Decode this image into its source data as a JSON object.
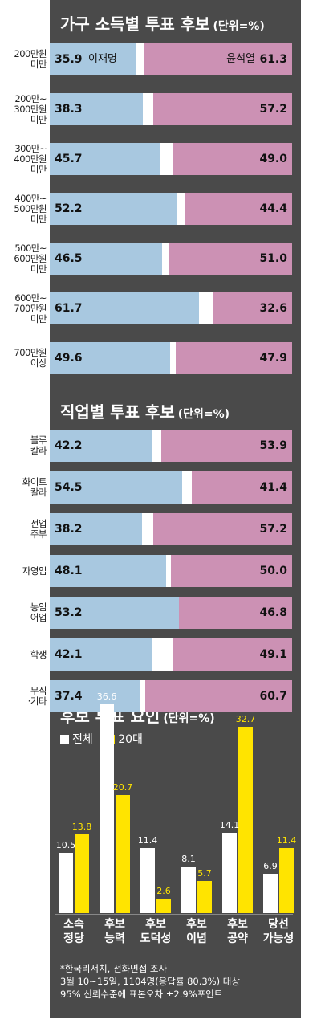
{
  "colors": {
    "panel": "#4a4a4a",
    "lee": "#a8c8e0",
    "yoon": "#cc91b4",
    "gap": "#ffffff",
    "all": "#ffffff",
    "twenties": "#ffe400"
  },
  "section1": {
    "title": "가구 소득별 투표 후보",
    "unit": "(단위=%)"
  },
  "section2": {
    "title": "직업별 투표 후보",
    "unit": "(단위=%)"
  },
  "section3": {
    "title": "후보 투표 요인",
    "unit": "(단위=%)"
  },
  "candidates": {
    "lee": "이재명",
    "yoon": "윤석열"
  },
  "legend": {
    "all": "전체",
    "twenties": "20대"
  },
  "chart_data": [
    {
      "type": "bar",
      "title": "가구 소득별 투표 후보",
      "subtitle": "(단위=%)",
      "categories": [
        "200만원\n미만",
        "200만~\n300만원\n미만",
        "300만~\n400만원\n미만",
        "400만~\n500만원\n미만",
        "500만~\n600만원\n미만",
        "600만~\n700만원\n미만",
        "700만원\n이상"
      ],
      "series": [
        {
          "name": "이재명",
          "values": [
            35.9,
            38.3,
            45.7,
            52.2,
            46.5,
            61.7,
            49.6
          ]
        },
        {
          "name": "윤석열",
          "values": [
            61.3,
            57.2,
            49.0,
            44.4,
            51.0,
            32.6,
            47.9
          ]
        }
      ],
      "value_labels": {
        "lee": [
          "35.9",
          "38.3",
          "45.7",
          "52.2",
          "46.5",
          "61.7",
          "49.6"
        ],
        "yoon": [
          "61.3",
          "57.2",
          "49.0",
          "44.4",
          "51.0",
          "32.6",
          "47.9"
        ]
      }
    },
    {
      "type": "bar",
      "title": "직업별 투표 후보",
      "subtitle": "(단위=%)",
      "categories": [
        "블루\n칼라",
        "화이트\n칼라",
        "전업\n주부",
        "자영업",
        "농임\n어업",
        "학생",
        "무직\n·기타"
      ],
      "series": [
        {
          "name": "이재명",
          "values": [
            42.2,
            54.5,
            38.2,
            48.1,
            53.2,
            42.1,
            37.4
          ]
        },
        {
          "name": "윤석열",
          "values": [
            53.9,
            41.4,
            57.2,
            50.0,
            46.8,
            49.1,
            60.7
          ]
        }
      ],
      "value_labels": {
        "lee": [
          "42.2",
          "54.5",
          "38.2",
          "48.1",
          "53.2",
          "42.1",
          "37.4"
        ],
        "yoon": [
          "53.9",
          "41.4",
          "57.2",
          "50.0",
          "46.8",
          "49.1",
          "60.7"
        ]
      }
    },
    {
      "type": "bar",
      "title": "후보 투표 요인",
      "subtitle": "(단위=%)",
      "categories": [
        "소속\n정당",
        "후보\n능력",
        "후보\n도덕성",
        "후보\n이념",
        "후보\n공약",
        "당선\n가능성"
      ],
      "series": [
        {
          "name": "전체",
          "values": [
            10.5,
            36.6,
            11.4,
            8.1,
            14.1,
            6.9
          ]
        },
        {
          "name": "20대",
          "values": [
            13.8,
            20.7,
            2.6,
            5.7,
            32.7,
            11.4
          ]
        }
      ],
      "value_labels": {
        "all": [
          "10.5",
          "36.6",
          "11.4",
          "8.1",
          "14.1",
          "6.9"
        ],
        "twenties": [
          "13.8",
          "20.7",
          "2.6",
          "5.7",
          "32.7",
          "11.4"
        ]
      },
      "ylim": [
        0,
        40
      ]
    }
  ],
  "note": [
    "*한국리서치, 전화면접 조사",
    "3월 10~15일, 1104명(응답률 80.3%) 대상",
    "95% 신뢰수준에 표본오차 ±2.9%포인트"
  ]
}
